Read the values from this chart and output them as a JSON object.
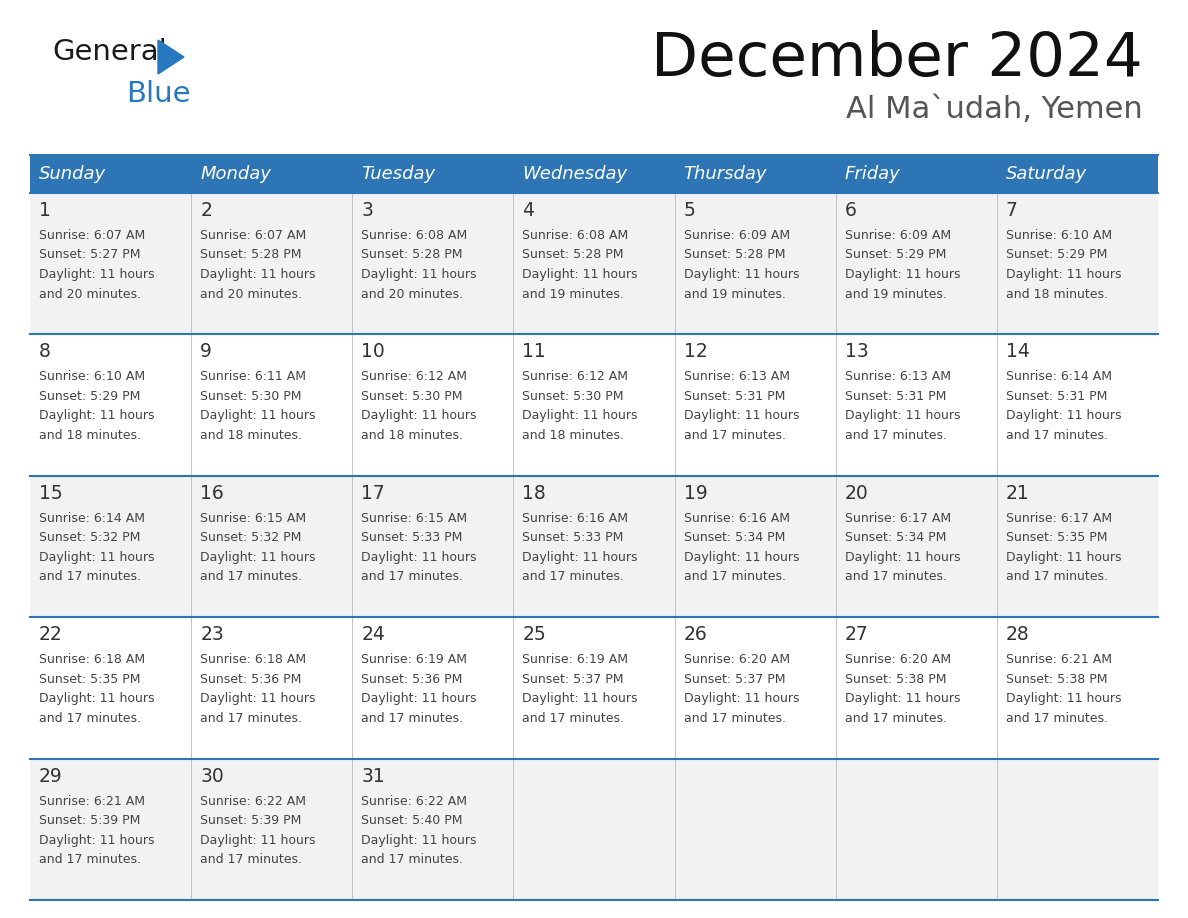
{
  "title": "December 2024",
  "subtitle": "Al Ma`udah, Yemen",
  "header_color": "#2E75B6",
  "header_text_color": "#FFFFFF",
  "days_of_week": [
    "Sunday",
    "Monday",
    "Tuesday",
    "Wednesday",
    "Thursday",
    "Friday",
    "Saturday"
  ],
  "row_bg_colors": [
    "#F2F2F2",
    "#FFFFFF"
  ],
  "cell_border_color": "#2E75B6",
  "day_number_color": "#333333",
  "text_color": "#444444",
  "logo_general_color": "#1a1a1a",
  "logo_blue_color": "#2878C0",
  "calendar": [
    [
      {
        "day": 1,
        "sunrise": "6:07 AM",
        "sunset": "5:27 PM",
        "daylight": "11 hours and 20 minutes."
      },
      {
        "day": 2,
        "sunrise": "6:07 AM",
        "sunset": "5:28 PM",
        "daylight": "11 hours and 20 minutes."
      },
      {
        "day": 3,
        "sunrise": "6:08 AM",
        "sunset": "5:28 PM",
        "daylight": "11 hours and 20 minutes."
      },
      {
        "day": 4,
        "sunrise": "6:08 AM",
        "sunset": "5:28 PM",
        "daylight": "11 hours and 19 minutes."
      },
      {
        "day": 5,
        "sunrise": "6:09 AM",
        "sunset": "5:28 PM",
        "daylight": "11 hours and 19 minutes."
      },
      {
        "day": 6,
        "sunrise": "6:09 AM",
        "sunset": "5:29 PM",
        "daylight": "11 hours and 19 minutes."
      },
      {
        "day": 7,
        "sunrise": "6:10 AM",
        "sunset": "5:29 PM",
        "daylight": "11 hours and 18 minutes."
      }
    ],
    [
      {
        "day": 8,
        "sunrise": "6:10 AM",
        "sunset": "5:29 PM",
        "daylight": "11 hours and 18 minutes."
      },
      {
        "day": 9,
        "sunrise": "6:11 AM",
        "sunset": "5:30 PM",
        "daylight": "11 hours and 18 minutes."
      },
      {
        "day": 10,
        "sunrise": "6:12 AM",
        "sunset": "5:30 PM",
        "daylight": "11 hours and 18 minutes."
      },
      {
        "day": 11,
        "sunrise": "6:12 AM",
        "sunset": "5:30 PM",
        "daylight": "11 hours and 18 minutes."
      },
      {
        "day": 12,
        "sunrise": "6:13 AM",
        "sunset": "5:31 PM",
        "daylight": "11 hours and 17 minutes."
      },
      {
        "day": 13,
        "sunrise": "6:13 AM",
        "sunset": "5:31 PM",
        "daylight": "11 hours and 17 minutes."
      },
      {
        "day": 14,
        "sunrise": "6:14 AM",
        "sunset": "5:31 PM",
        "daylight": "11 hours and 17 minutes."
      }
    ],
    [
      {
        "day": 15,
        "sunrise": "6:14 AM",
        "sunset": "5:32 PM",
        "daylight": "11 hours and 17 minutes."
      },
      {
        "day": 16,
        "sunrise": "6:15 AM",
        "sunset": "5:32 PM",
        "daylight": "11 hours and 17 minutes."
      },
      {
        "day": 17,
        "sunrise": "6:15 AM",
        "sunset": "5:33 PM",
        "daylight": "11 hours and 17 minutes."
      },
      {
        "day": 18,
        "sunrise": "6:16 AM",
        "sunset": "5:33 PM",
        "daylight": "11 hours and 17 minutes."
      },
      {
        "day": 19,
        "sunrise": "6:16 AM",
        "sunset": "5:34 PM",
        "daylight": "11 hours and 17 minutes."
      },
      {
        "day": 20,
        "sunrise": "6:17 AM",
        "sunset": "5:34 PM",
        "daylight": "11 hours and 17 minutes."
      },
      {
        "day": 21,
        "sunrise": "6:17 AM",
        "sunset": "5:35 PM",
        "daylight": "11 hours and 17 minutes."
      }
    ],
    [
      {
        "day": 22,
        "sunrise": "6:18 AM",
        "sunset": "5:35 PM",
        "daylight": "11 hours and 17 minutes."
      },
      {
        "day": 23,
        "sunrise": "6:18 AM",
        "sunset": "5:36 PM",
        "daylight": "11 hours and 17 minutes."
      },
      {
        "day": 24,
        "sunrise": "6:19 AM",
        "sunset": "5:36 PM",
        "daylight": "11 hours and 17 minutes."
      },
      {
        "day": 25,
        "sunrise": "6:19 AM",
        "sunset": "5:37 PM",
        "daylight": "11 hours and 17 minutes."
      },
      {
        "day": 26,
        "sunrise": "6:20 AM",
        "sunset": "5:37 PM",
        "daylight": "11 hours and 17 minutes."
      },
      {
        "day": 27,
        "sunrise": "6:20 AM",
        "sunset": "5:38 PM",
        "daylight": "11 hours and 17 minutes."
      },
      {
        "day": 28,
        "sunrise": "6:21 AM",
        "sunset": "5:38 PM",
        "daylight": "11 hours and 17 minutes."
      }
    ],
    [
      {
        "day": 29,
        "sunrise": "6:21 AM",
        "sunset": "5:39 PM",
        "daylight": "11 hours and 17 minutes."
      },
      {
        "day": 30,
        "sunrise": "6:22 AM",
        "sunset": "5:39 PM",
        "daylight": "11 hours and 17 minutes."
      },
      {
        "day": 31,
        "sunrise": "6:22 AM",
        "sunset": "5:40 PM",
        "daylight": "11 hours and 17 minutes."
      },
      null,
      null,
      null,
      null
    ]
  ]
}
